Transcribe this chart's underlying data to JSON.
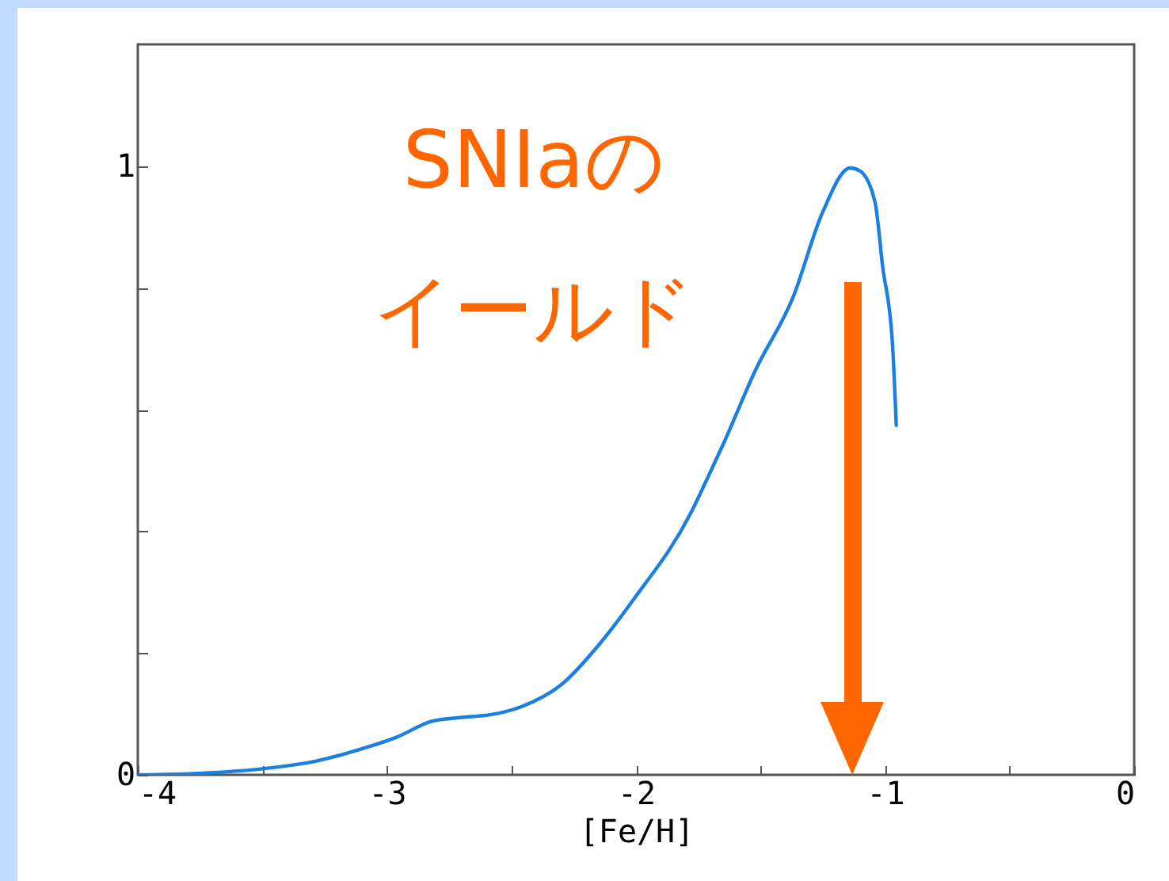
{
  "chart_data": {
    "type": "line",
    "xlabel": "[Fe/H]",
    "annotations": [
      "SNIaの",
      "イールド"
    ],
    "x": [
      -4,
      -3.73,
      -3.5,
      -3.28,
      -3.09,
      -2.96,
      -2.82,
      -2.71,
      -2.58,
      -2.46,
      -2.3,
      -2.14,
      -2.01,
      -1.78,
      -1.71,
      -1.65,
      -1.52,
      -1.37,
      -1.25,
      -1.14,
      -1.1,
      -1.04,
      -1.01,
      -0.97,
      -0.955
    ],
    "series": [
      {
        "color": "#1a7fe0",
        "values": [
          0,
          0.003,
          0.01,
          0.023,
          0.044,
          0.062,
          0.088,
          0.094,
          0.099,
          0.112,
          0.148,
          0.218,
          0.288,
          0.43,
          0.49,
          0.543,
          0.665,
          0.784,
          0.925,
          0.997,
          0.992,
          0.94,
          0.836,
          0.706,
          0.574
        ]
      }
    ],
    "xlim": [
      -4,
      0
    ],
    "xticks": [
      -4,
      {
        "value": -3.5,
        "label": null
      },
      -3,
      {
        "value": -2.5,
        "label": null
      },
      -2,
      {
        "value": -1.5,
        "label": null
      },
      -1,
      {
        "value": -0.5,
        "label": null
      },
      0
    ],
    "ylim": [
      0,
      1.2
    ],
    "yticks": [
      0,
      {
        "value": 0.2,
        "label": null
      },
      {
        "value": 0.4,
        "label": null
      },
      {
        "value": 0.6,
        "label": null
      },
      {
        "value": 0.8,
        "label": null
      },
      1
    ],
    "grid": false,
    "marker": "none",
    "line_style": "solid"
  }
}
